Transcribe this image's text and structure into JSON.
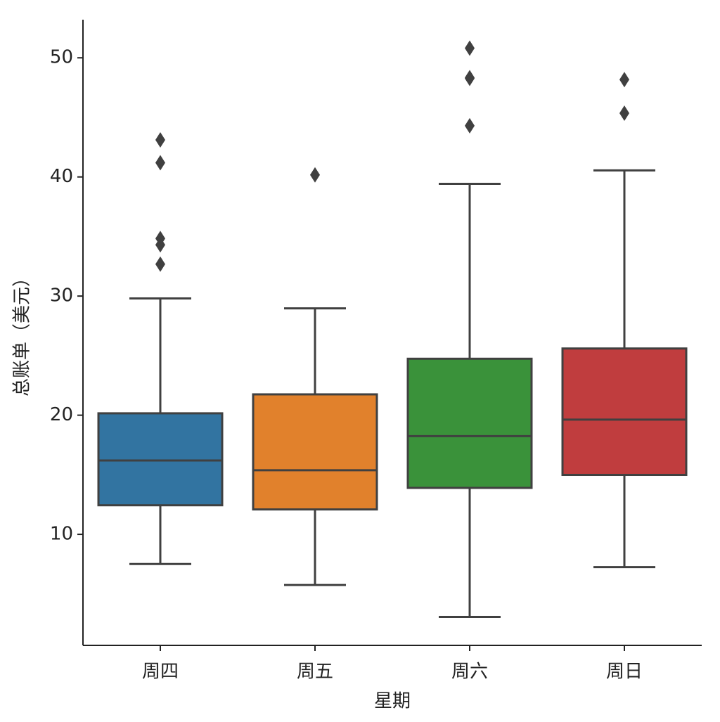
{
  "chart_data": {
    "type": "box",
    "xlabel": "星期",
    "ylabel": "总账单（美元）",
    "categories": [
      "周四",
      "周五",
      "周六",
      "周日"
    ],
    "boxes": [
      {
        "color": "#3274a1",
        "whisker_low": 7.51,
        "q1": 12.44,
        "median": 16.2,
        "q3": 20.16,
        "whisker_high": 29.8,
        "outliers": [
          32.68,
          34.3,
          34.83,
          41.19,
          43.11
        ]
      },
      {
        "color": "#e1812c",
        "whisker_low": 5.75,
        "q1": 12.09,
        "median": 15.38,
        "q3": 21.75,
        "whisker_high": 28.97,
        "outliers": [
          40.17
        ]
      },
      {
        "color": "#3a923a",
        "whisker_low": 3.07,
        "q1": 13.9,
        "median": 18.24,
        "q3": 24.74,
        "whisker_high": 39.42,
        "outliers": [
          44.3,
          48.27,
          48.33,
          50.81
        ]
      },
      {
        "color": "#c03d3e",
        "whisker_low": 7.25,
        "q1": 14.99,
        "median": 19.63,
        "q3": 25.6,
        "whisker_high": 40.55,
        "outliers": [
          45.35,
          48.17
        ]
      }
    ],
    "ylim": [
      0.68,
      53.2
    ],
    "yticks": [
      10,
      20,
      30,
      40,
      50
    ]
  }
}
